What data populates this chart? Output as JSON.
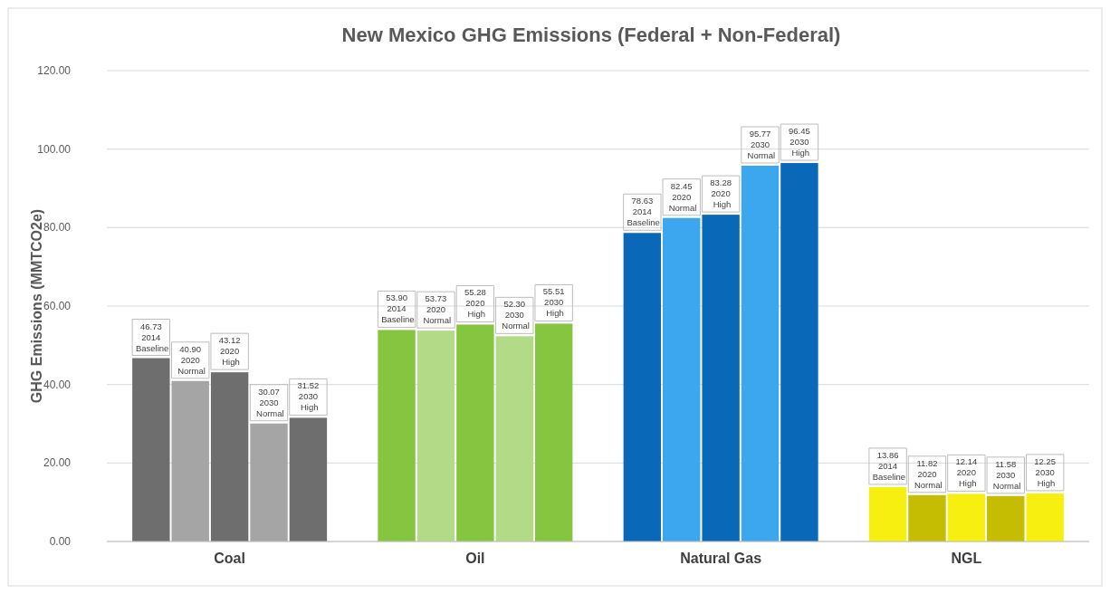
{
  "chart_data": {
    "type": "bar",
    "title": "New Mexico GHG Emissions (Federal + Non-Federal)",
    "ylabel": "GHG Emissions (MMTCO2e)",
    "categories": [
      "Coal",
      "Oil",
      "Natural Gas",
      "NGL"
    ],
    "series": [
      {
        "name": "2014 Baseline",
        "colors": [
          "#6e6e6e",
          "#86c540",
          "#0a68b8",
          "#f7ef0f"
        ],
        "values": [
          46.73,
          53.9,
          78.63,
          13.86
        ],
        "value_labels": [
          "46.73",
          "53.90",
          "78.63",
          "13.86"
        ]
      },
      {
        "name": "2020 Normal",
        "colors": [
          "#a5a5a5",
          "#b3da86",
          "#3ca6ee",
          "#c4bd02"
        ],
        "values": [
          40.9,
          53.73,
          82.45,
          11.82
        ],
        "value_labels": [
          "40.90",
          "53.73",
          "82.45",
          "11.82"
        ]
      },
      {
        "name": "2020 High",
        "colors": [
          "#6e6e6e",
          "#86c540",
          "#0a68b8",
          "#f7ef0f"
        ],
        "values": [
          43.12,
          55.28,
          83.28,
          12.14
        ],
        "value_labels": [
          "43.12",
          "55.28",
          "83.28",
          "12.14"
        ]
      },
      {
        "name": "2030 Normal",
        "colors": [
          "#a5a5a5",
          "#b3da86",
          "#3ca6ee",
          "#c4bd02"
        ],
        "values": [
          30.07,
          52.3,
          95.77,
          11.58
        ],
        "value_labels": [
          "30.07",
          "52.30",
          "95.77",
          "11.58"
        ]
      },
      {
        "name": "2030 High",
        "colors": [
          "#6e6e6e",
          "#86c540",
          "#0a68b8",
          "#f7ef0f"
        ],
        "values": [
          31.52,
          55.51,
          96.45,
          12.25
        ],
        "value_labels": [
          "31.52",
          "55.51",
          "96.45",
          "12.25"
        ]
      }
    ],
    "ylim": [
      0,
      120
    ],
    "yticks": [
      {
        "value": 0,
        "label": "0.00"
      },
      {
        "value": 20,
        "label": "20.00"
      },
      {
        "value": 40,
        "label": "40.00"
      },
      {
        "value": 60,
        "label": "60.00"
      },
      {
        "value": 80,
        "label": "80.00"
      },
      {
        "value": 100,
        "label": "100.00"
      },
      {
        "value": 120,
        "label": "120.00"
      }
    ],
    "grid": "y"
  }
}
